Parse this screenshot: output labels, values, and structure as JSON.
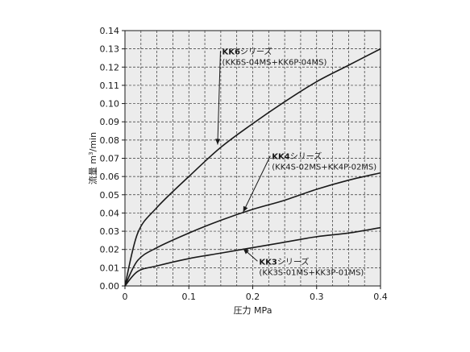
{
  "chart_data": {
    "type": "line",
    "title": "",
    "xlabel": "圧力 MPa",
    "ylabel_main": "流量 m",
    "ylabel_sup": "3",
    "ylabel_tail": "/min",
    "xlim": [
      0,
      0.4
    ],
    "ylim": [
      0,
      0.14
    ],
    "grid": true,
    "background": "#ececec",
    "line_color": "#1a1a1a",
    "xticks": [
      "0",
      "0.1",
      "0.2",
      "0.3",
      "0.4"
    ],
    "yticks": [
      "0.00",
      "0.01",
      "0.02",
      "0.03",
      "0.04",
      "0.05",
      "0.06",
      "0.07",
      "0.08",
      "0.09",
      "0.10",
      "0.11",
      "0.12",
      "0.13",
      "0.14"
    ],
    "series": [
      {
        "model": "KK6",
        "suffix": "シリーズ",
        "parts": "(KK6S-04MS+KK6P-04MS)",
        "x": [
          0,
          0.02,
          0.05,
          0.1,
          0.15,
          0.2,
          0.25,
          0.3,
          0.35,
          0.4
        ],
        "y": [
          0,
          0.029,
          0.043,
          0.06,
          0.076,
          0.089,
          0.101,
          0.112,
          0.121,
          0.13
        ]
      },
      {
        "model": "KK4",
        "suffix": "シリーズ",
        "parts": "(KK4S-02MS+KK4P-02MS)",
        "x": [
          0,
          0.02,
          0.05,
          0.1,
          0.15,
          0.2,
          0.25,
          0.3,
          0.35,
          0.4
        ],
        "y": [
          0,
          0.014,
          0.021,
          0.029,
          0.036,
          0.042,
          0.047,
          0.053,
          0.058,
          0.062
        ]
      },
      {
        "model": "KK3",
        "suffix": "シリーズ",
        "parts": "(KK3S-01MS+KK3P-01MS)",
        "x": [
          0,
          0.02,
          0.05,
          0.1,
          0.15,
          0.2,
          0.25,
          0.3,
          0.35,
          0.4
        ],
        "y": [
          0,
          0.008,
          0.011,
          0.015,
          0.018,
          0.021,
          0.024,
          0.027,
          0.029,
          0.032
        ]
      }
    ],
    "annotations": [
      {
        "series": 0,
        "label_x": 0.152,
        "label_y": 0.127,
        "arrow_to_x": 0.145,
        "arrow_to_y": 0.0775
      },
      {
        "series": 1,
        "label_x": 0.23,
        "label_y": 0.0695,
        "arrow_to_x": 0.185,
        "arrow_to_y": 0.0405
      },
      {
        "series": 2,
        "label_x": 0.21,
        "label_y": 0.0118,
        "arrow_to_x": 0.185,
        "arrow_to_y": 0.0205
      }
    ]
  }
}
